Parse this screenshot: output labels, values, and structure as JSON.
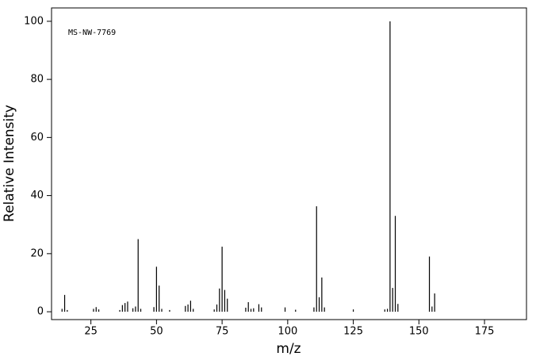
{
  "chart_data": {
    "type": "bar",
    "annotation": "MS-NW-7769",
    "x_label": "m/z",
    "y_label": "Relative Intensity",
    "x": [
      14,
      15,
      16,
      26,
      27,
      28,
      36,
      37,
      38,
      39,
      41,
      42,
      43,
      44,
      49,
      50,
      51,
      52,
      55,
      61,
      62,
      63,
      64,
      72,
      73,
      74,
      75,
      76,
      77,
      84,
      85,
      86,
      87,
      89,
      90,
      99,
      103,
      110,
      111,
      112,
      113,
      114,
      125,
      137,
      138,
      139,
      140,
      141,
      142,
      154,
      155,
      156
    ],
    "values": [
      1,
      5.8,
      0.6,
      1,
      1.6,
      0.8,
      0.6,
      2.3,
      3,
      3.5,
      1.2,
      1.8,
      25,
      1,
      1.6,
      15.5,
      9,
      1,
      0.6,
      2,
      2.5,
      3.8,
      1,
      0.8,
      2.5,
      8,
      22.4,
      7.5,
      4.5,
      1.4,
      3.3,
      1,
      1.2,
      2.6,
      1.5,
      1.5,
      0.7,
      1.5,
      36.3,
      5,
      11.8,
      1.5,
      0.8,
      0.8,
      1,
      100,
      8.2,
      33,
      2.7,
      19,
      1.8,
      6.3
    ],
    "color": "#000000",
    "xlim": [
      10,
      191
    ],
    "ylim": [
      -2.7,
      104.6
    ],
    "xticks": [
      25,
      50,
      75,
      100,
      125,
      150,
      175
    ],
    "yticks": [
      0,
      20,
      40,
      60,
      80,
      100
    ]
  }
}
